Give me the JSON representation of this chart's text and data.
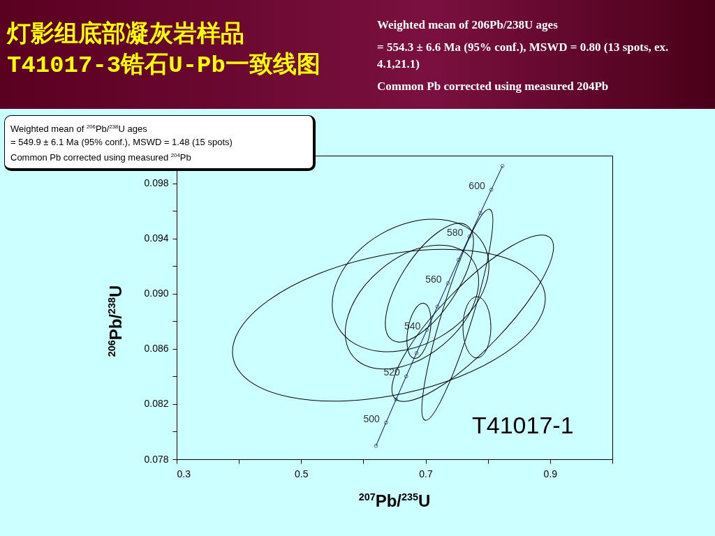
{
  "chart_data": {
    "type": "line",
    "title": "灯影组底部凝灰岩样品\nT41017-3锆石U-Pb一致线图",
    "subtitle": "Weighted mean of 206Pb/238U ages\n= 554.3 ± 6.6 Ma (95% conf.), MSWD = 0.80 (13 spots, ex. 4.1,21.1)\nCommon Pb corrected using measured 204Pb",
    "xlabel": "$^{207}$Pb/$^{235}$U",
    "ylabel": "$^{206}$Pb/$^{238}$U",
    "annotations": [
      "Weighted mean of $^{206}$Pb/$^{238}$U ages\n= 549.9 ± 6.1 Ma (95% conf.), MSWD = 1.48 (15 spots)\nCommon Pb corrected using measured $^{204}$Pb",
      "T41017-1",
      {
        "text": "500",
        "x": 0.6363,
        "y": 0.08065
      },
      {
        "text": "520",
        "x": 0.6688,
        "y": 0.08401
      },
      {
        "text": "540",
        "x": 0.702,
        "y": 0.08738
      },
      {
        "text": "560",
        "x": 0.7359,
        "y": 0.09076
      },
      {
        "text": "580",
        "x": 0.7704,
        "y": 0.09414
      },
      {
        "text": "600",
        "x": 0.8056,
        "y": 0.09754
      }
    ],
    "xlim": [
      0.3,
      1.0
    ],
    "ylim": [
      0.078,
      0.1
    ],
    "xticks": [
      0.3,
      {
        "value": 0.4,
        "label": null
      },
      0.5,
      {
        "value": 0.6,
        "label": null
      },
      0.7,
      {
        "value": 0.8,
        "label": null
      },
      0.9,
      {
        "value": 1.0,
        "label": null
      }
    ],
    "yticks": [
      0.078,
      {
        "value": 0.08,
        "label": null
      },
      0.082,
      {
        "value": 0.084,
        "label": null
      },
      0.086,
      {
        "value": 0.088,
        "label": null
      },
      {
        "value": 0.09,
        "label": "0.090"
      },
      {
        "value": 0.092,
        "label": null
      },
      0.094,
      {
        "value": 0.096,
        "label": null
      },
      0.098,
      {
        "value": 0.1,
        "label": null
      }
    ],
    "grid": false,
    "series": [
      {
        "color": "#000080",
        "marker": "circle",
        "x": [
          0.6202,
          0.6363,
          0.6525,
          0.6688,
          0.6853,
          0.702,
          0.7189,
          0.7359,
          0.753,
          0.7704,
          0.7879,
          0.8056,
          0.8235
        ],
        "values": [
          0.07897,
          0.08065,
          0.08233,
          0.08401,
          0.08569,
          0.08738,
          0.08906,
          0.09076,
          0.09245,
          0.09414,
          0.09584,
          0.09754,
          0.09925
        ]
      }
    ]
  }
}
